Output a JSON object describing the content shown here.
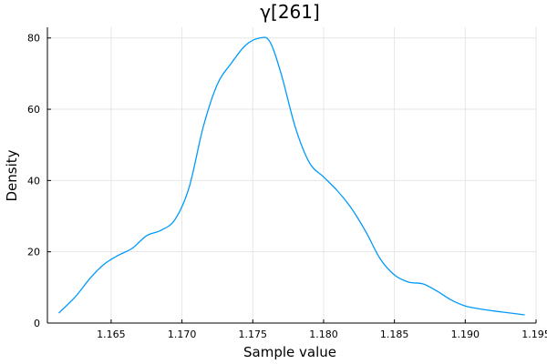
{
  "chart_data": {
    "type": "line",
    "title": "γ[261]",
    "xlabel": "Sample value",
    "ylabel": "Density",
    "xlim": [
      1.1605,
      1.195
    ],
    "ylim": [
      0,
      83
    ],
    "x_ticks": [
      1.165,
      1.17,
      1.175,
      1.18,
      1.185,
      1.19,
      1.195
    ],
    "x_tick_labels": [
      "1.165",
      "1.170",
      "1.175",
      "1.180",
      "1.185",
      "1.190",
      "1.195"
    ],
    "y_ticks": [
      0,
      20,
      40,
      60,
      80
    ],
    "y_tick_labels": [
      "0",
      "20",
      "40",
      "60",
      "80"
    ],
    "grid": true,
    "legend": "none",
    "series": [
      {
        "color": "#009AFA",
        "x": [
          1.1613,
          1.1625,
          1.1635,
          1.1645,
          1.1655,
          1.1665,
          1.1675,
          1.1685,
          1.1695,
          1.1705,
          1.1715,
          1.1725,
          1.1735,
          1.1745,
          1.1755,
          1.1762,
          1.177,
          1.178,
          1.179,
          1.18,
          1.181,
          1.182,
          1.183,
          1.184,
          1.185,
          1.186,
          1.187,
          1.188,
          1.189,
          1.19,
          1.191,
          1.192,
          1.193,
          1.1942
        ],
        "y": [
          2.8,
          7.5,
          12.5,
          16.5,
          19.0,
          21.0,
          24.5,
          26.0,
          29.0,
          38.0,
          55.0,
          67.0,
          73.0,
          78.0,
          80.0,
          79.0,
          70.0,
          55.0,
          45.0,
          41.0,
          37.0,
          32.0,
          25.5,
          18.0,
          13.5,
          11.5,
          11.0,
          9.0,
          6.5,
          4.8,
          4.0,
          3.4,
          2.9,
          2.3
        ]
      }
    ]
  }
}
